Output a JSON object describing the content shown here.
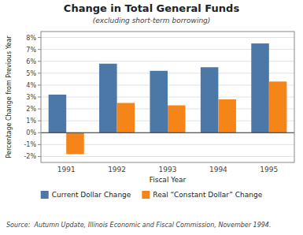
{
  "chart_data": {
    "type": "bar",
    "title": "Change in Total General Funds",
    "subtitle": "(excluding short-term borrowing)",
    "x_label": "Fiscal Year",
    "y_label": "Percentage Change from Previous Year",
    "source": "Source:  Autumn Update, Illinois Economic and Fiscal Commission, November 1994.",
    "categories": [
      "1991",
      "1992",
      "1993",
      "1994",
      "1995"
    ],
    "series": [
      {
        "name": "Current Dollar Change",
        "values": [
          3.2,
          5.8,
          5.2,
          5.5,
          7.5
        ]
      },
      {
        "name": "Real “Constant Dollar” Change",
        "values": [
          -1.8,
          2.5,
          2.3,
          2.8,
          4.3
        ]
      }
    ],
    "ylim": [
      -2.5,
      8.5
    ],
    "yticks": [
      {
        "value": -2,
        "label": "-2%"
      },
      {
        "value": -1,
        "label": "-1%"
      },
      {
        "value": 0,
        "label": "0%"
      },
      {
        "value": 1,
        "label": "1%"
      },
      {
        "value": 2,
        "label": "2%"
      },
      {
        "value": 3,
        "label": "3%"
      },
      {
        "value": 4,
        "label": "4%"
      },
      {
        "value": 5,
        "label": "5%"
      },
      {
        "value": 6,
        "label": "6%"
      },
      {
        "value": 7,
        "label": "7%"
      },
      {
        "value": 8,
        "label": "8%"
      }
    ],
    "grid": true,
    "legend": "bottom"
  }
}
